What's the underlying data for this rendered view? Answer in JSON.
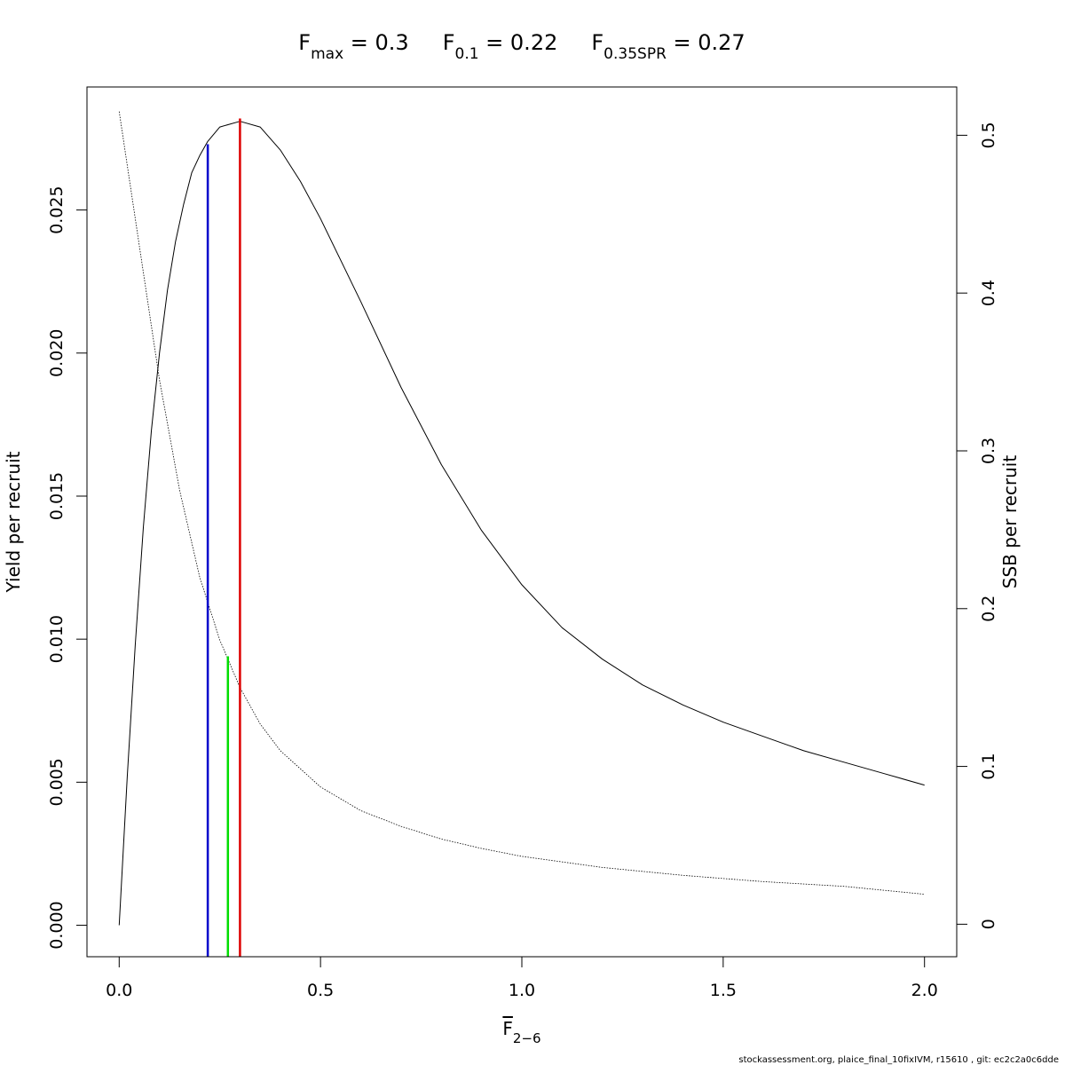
{
  "chart_data": {
    "type": "line",
    "title_parts": [
      {
        "main": "F",
        "sub": "max",
        "rest": " = 0.3"
      },
      {
        "main": "F",
        "sub": "0.1",
        "rest": " = 0.22"
      },
      {
        "main": "F",
        "sub": "0.35SPR",
        "rest": " = 0.27"
      }
    ],
    "xlabel": {
      "main": "F",
      "sub": "2−6"
    },
    "ylabel": "Yield per recruit",
    "y2label": "SSB per recruit",
    "xlim": [
      -0.08,
      2.08
    ],
    "ylim": [
      -0.0011,
      0.0293
    ],
    "y2lim": [
      -0.0206,
      0.5306
    ],
    "xticks": [
      0,
      0.5,
      1,
      1.5,
      2
    ],
    "xtick_labels": [
      "0.0",
      "0.5",
      "1.0",
      "1.5",
      "2.0"
    ],
    "yticks": [
      0,
      0.005,
      0.01,
      0.015,
      0.02,
      0.025
    ],
    "ytick_labels": [
      "0.000",
      "0.005",
      "0.010",
      "0.015",
      "0.020",
      "0.025"
    ],
    "y2ticks": [
      0,
      0.1,
      0.2,
      0.3,
      0.4,
      0.5
    ],
    "y2tick_labels": [
      "0",
      "0.1",
      "0.2",
      "0.3",
      "0.4",
      "0.5"
    ],
    "series": [
      {
        "style": "solid",
        "axis": "left",
        "x": [
          0,
          0.02,
          0.04,
          0.06,
          0.08,
          0.1,
          0.12,
          0.14,
          0.16,
          0.18,
          0.2,
          0.22,
          0.25,
          0.3,
          0.35,
          0.4,
          0.45,
          0.5,
          0.6,
          0.7,
          0.8,
          0.9,
          1.0,
          1.1,
          1.2,
          1.3,
          1.4,
          1.5,
          1.6,
          1.7,
          1.8,
          1.9,
          2.0
        ],
        "values": [
          0.0,
          0.0052,
          0.0098,
          0.0139,
          0.0173,
          0.02,
          0.0222,
          0.0239,
          0.0252,
          0.0263,
          0.0269,
          0.0274,
          0.0279,
          0.0281,
          0.0279,
          0.0271,
          0.026,
          0.0247,
          0.0218,
          0.0188,
          0.0161,
          0.0138,
          0.0119,
          0.0104,
          0.0093,
          0.0084,
          0.0077,
          0.0071,
          0.0066,
          0.0061,
          0.0057,
          0.0053,
          0.0049
        ],
        "color": "#000000"
      },
      {
        "style": "dotted",
        "axis": "right",
        "x": [
          0,
          0.05,
          0.1,
          0.15,
          0.2,
          0.25,
          0.3,
          0.35,
          0.4,
          0.5,
          0.6,
          0.7,
          0.8,
          0.9,
          1.0,
          1.2,
          1.4,
          1.6,
          1.8,
          2.0
        ],
        "values": [
          0.515,
          0.43,
          0.345,
          0.275,
          0.22,
          0.18,
          0.15,
          0.127,
          0.11,
          0.087,
          0.072,
          0.062,
          0.054,
          0.048,
          0.043,
          0.036,
          0.031,
          0.027,
          0.024,
          0.019
        ],
        "color": "#000000"
      }
    ],
    "reference_lines": [
      {
        "x": 0.22,
        "y": 0.0273,
        "color": "#0000cc"
      },
      {
        "x": 0.27,
        "y": 0.0094,
        "color": "#00dd00"
      },
      {
        "x": 0.3,
        "y": 0.0282,
        "color": "#dd0000"
      }
    ],
    "grid": false,
    "footnote": "stockassessment.org, plaice_final_10fixIVM, r15610 , git: ec2c2a0c6dde"
  }
}
